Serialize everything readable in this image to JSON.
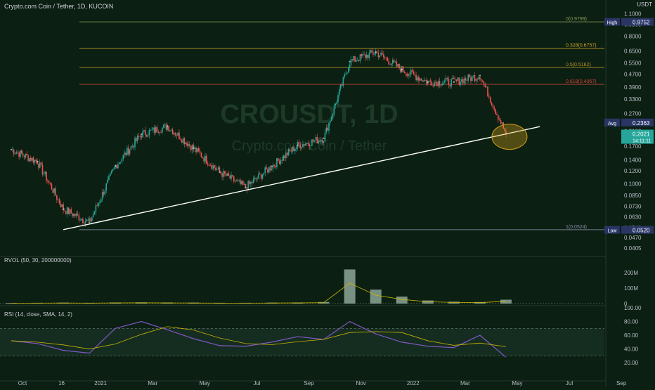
{
  "header": {
    "title": "Crypto.com Coin / Tether, 1D, KUCOIN"
  },
  "watermark": {
    "symbol": "CROUSDT, 1D",
    "name": "Crypto.com Coin / Tether"
  },
  "price_axis": {
    "unit": "USDT",
    "unit_label": "USDT",
    "ticks": [
      "1.1000",
      "0.9500",
      "0.8000",
      "0.6500",
      "0.5500",
      "0.4700",
      "0.3900",
      "0.3300",
      "0.2700",
      "0.2100",
      "0.1700",
      "0.1400",
      "0.1200",
      "0.1000",
      "0.0850",
      "0.0730",
      "0.0630",
      "0.0540",
      "0.0470",
      "0.0405"
    ],
    "tags": [
      {
        "label": "High",
        "value": "0.9752",
        "price": 0.9752
      },
      {
        "label": "Avg",
        "value": "0.2363",
        "price": 0.2363
      },
      {
        "label": "",
        "value": "0.2021",
        "price": 0.2021,
        "sub": "14:11:11"
      },
      {
        "label": "Low",
        "value": "0.0520",
        "price": 0.052
      }
    ]
  },
  "fib_levels": [
    {
      "label": "0(0.9799)",
      "price": 0.9799,
      "color": "#8a9a5b"
    },
    {
      "label": "0.328(0.6757)",
      "price": 0.6757,
      "color": "#c9a227"
    },
    {
      "label": "0.5(0.5162)",
      "price": 0.5162,
      "color": "#b8962a"
    },
    {
      "label": "0.618(0.4067)",
      "price": 0.4067,
      "color": "#d0463c"
    },
    {
      "label": "1(0.0524)",
      "price": 0.0524,
      "color": "#8a8fa8"
    }
  ],
  "time_axis": {
    "ticks": [
      "Oct",
      "16",
      "2021",
      "Mar",
      "May",
      "Jul",
      "Sep",
      "Nov",
      "2022",
      "Mar",
      "May",
      "Jul",
      "Sep"
    ]
  },
  "rvol": {
    "label": "RVOL (50, 30, 200000000)",
    "ticks": [
      "200M",
      "100M",
      "0"
    ]
  },
  "rsi": {
    "label": "RSI (14, close, SMA, 14, 2)",
    "ticks": [
      "100.00",
      "80.00",
      "60.00",
      "40.00",
      "20.00"
    ],
    "upper": 70,
    "lower": 30
  },
  "colors": {
    "background": "#0b1f12",
    "up": "#26a69a",
    "down": "#ef5350",
    "rsi": "#7e57c2",
    "rsi_ma": "#c8b400",
    "trendline": "#ffffff",
    "highlight": "#d4a017",
    "tag": "#2a3566",
    "last_price": "#26a69a"
  },
  "chart_data": {
    "type": "line",
    "title": "Crypto.com Coin / Tether, 1D, KUCOIN",
    "scale": "log",
    "ylim": [
      0.037,
      1.15
    ],
    "x": [
      "2020-10",
      "2020-11",
      "2020-12",
      "2021-01",
      "2021-02",
      "2021-03",
      "2021-04",
      "2021-05",
      "2021-06",
      "2021-07",
      "2021-08",
      "2021-09",
      "2021-10",
      "2021-11",
      "2021-12",
      "2022-01",
      "2022-02",
      "2022-03",
      "2022-04",
      "2022-05"
    ],
    "series": [
      {
        "values": [
          0.162,
          0.137,
          0.07,
          0.058,
          0.129,
          0.201,
          0.225,
          0.165,
          0.118,
          0.095,
          0.128,
          0.172,
          0.19,
          0.56,
          0.64,
          0.5,
          0.42,
          0.42,
          0.46,
          0.2021
        ]
      }
    ],
    "trendline": {
      "start": [
        "2020-12",
        0.0524
      ],
      "end": [
        "2022-06",
        0.224
      ]
    },
    "volume": [
      4,
      5,
      6,
      5,
      7,
      8,
      7,
      6,
      5,
      5,
      6,
      7,
      10,
      220,
      90,
      45,
      20,
      12,
      10,
      25
    ],
    "rsi": [
      52,
      48,
      38,
      34,
      70,
      80,
      68,
      55,
      45,
      44,
      50,
      58,
      54,
      80,
      62,
      50,
      44,
      42,
      60,
      28
    ]
  }
}
